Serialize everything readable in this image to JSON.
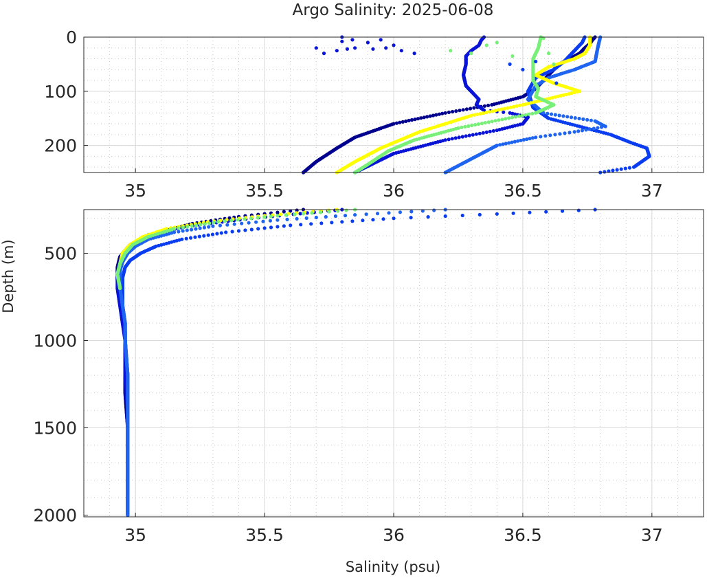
{
  "chart_data": [
    {
      "panel": "top",
      "type": "scatter",
      "title": "Argo Salinity: 2025-06-08",
      "xlabel": "",
      "ylabel": "",
      "xlim": [
        34.8,
        37.2
      ],
      "ylim": [
        250,
        0
      ],
      "y_reversed": true,
      "grid": true,
      "minor_grid": true,
      "xticks": [
        35,
        35.5,
        36,
        36.5,
        37
      ],
      "xtick_labels": [
        "35",
        "35.5",
        "36",
        "36.5",
        "37"
      ],
      "yticks": [
        0,
        100,
        200
      ],
      "ytick_labels": [
        "0",
        "100",
        "200"
      ],
      "series": [
        {
          "color": "#00008f",
          "profile": [
            [
              36.78,
              0
            ],
            [
              36.77,
              5
            ],
            [
              36.76,
              12
            ],
            [
              36.74,
              20
            ],
            [
              36.72,
              30
            ],
            [
              36.68,
              40
            ],
            [
              36.64,
              50
            ],
            [
              36.62,
              60
            ],
            [
              36.6,
              70
            ],
            [
              36.58,
              80
            ],
            [
              36.55,
              95
            ],
            [
              36.5,
              110
            ],
            [
              36.38,
              125
            ],
            [
              36.2,
              140
            ],
            [
              36.0,
              160
            ],
            [
              35.85,
              185
            ],
            [
              35.78,
              205
            ],
            [
              35.7,
              230
            ],
            [
              35.65,
              250
            ]
          ]
        },
        {
          "color": "#0a14d6",
          "profile": [
            [
              36.35,
              0
            ],
            [
              36.34,
              5
            ],
            [
              36.33,
              15
            ],
            [
              36.3,
              25
            ],
            [
              36.28,
              35
            ],
            [
              36.28,
              50
            ],
            [
              36.27,
              70
            ],
            [
              36.28,
              90
            ],
            [
              36.31,
              105
            ],
            [
              36.33,
              115
            ],
            [
              36.32,
              125
            ],
            [
              36.35,
              135
            ],
            [
              36.45,
              140
            ],
            [
              36.52,
              148
            ],
            [
              36.5,
              160
            ],
            [
              36.4,
              172
            ],
            [
              36.2,
              190
            ],
            [
              36.0,
              215
            ],
            [
              35.85,
              250
            ]
          ]
        },
        {
          "color": "#0a3cf0",
          "profile": [
            [
              36.74,
              0
            ],
            [
              36.73,
              10
            ],
            [
              36.7,
              25
            ],
            [
              36.66,
              45
            ],
            [
              36.62,
              60
            ],
            [
              36.55,
              75
            ],
            [
              36.52,
              100
            ],
            [
              36.54,
              130
            ],
            [
              36.6,
              150
            ],
            [
              36.72,
              165
            ],
            [
              36.84,
              180
            ],
            [
              36.92,
              195
            ],
            [
              36.98,
              205
            ],
            [
              36.99,
              220
            ],
            [
              36.93,
              240
            ],
            [
              36.8,
              250
            ]
          ]
        },
        {
          "color": "#1e64f0",
          "profile": [
            [
              36.8,
              0
            ],
            [
              36.79,
              20
            ],
            [
              36.78,
              45
            ],
            [
              36.7,
              60
            ],
            [
              36.6,
              75
            ],
            [
              36.55,
              90
            ],
            [
              36.52,
              115
            ],
            [
              36.58,
              140
            ],
            [
              36.78,
              155
            ],
            [
              36.82,
              165
            ],
            [
              36.7,
              175
            ],
            [
              36.55,
              185
            ],
            [
              36.4,
              200
            ],
            [
              36.3,
              225
            ],
            [
              36.2,
              250
            ]
          ]
        },
        {
          "color": "#ffff00",
          "profile": [
            [
              36.76,
              0
            ],
            [
              36.76,
              15
            ],
            [
              36.74,
              30
            ],
            [
              36.7,
              40
            ],
            [
              36.6,
              55
            ],
            [
              36.55,
              70
            ],
            [
              36.62,
              85
            ],
            [
              36.72,
              100
            ],
            [
              36.5,
              125
            ],
            [
              36.3,
              145
            ],
            [
              36.1,
              175
            ],
            [
              35.95,
              205
            ],
            [
              35.85,
              230
            ],
            [
              35.78,
              250
            ]
          ]
        },
        {
          "color": "#78f078",
          "profile": [
            [
              36.57,
              0
            ],
            [
              36.56,
              20
            ],
            [
              36.54,
              40
            ],
            [
              36.54,
              60
            ],
            [
              36.54,
              80
            ],
            [
              36.56,
              95
            ],
            [
              36.55,
              110
            ],
            [
              36.62,
              125
            ],
            [
              36.55,
              140
            ],
            [
              36.42,
              152
            ],
            [
              36.25,
              168
            ],
            [
              36.08,
              190
            ],
            [
              35.98,
              210
            ],
            [
              35.9,
              235
            ],
            [
              35.85,
              250
            ]
          ]
        }
      ],
      "near_surface_points": [
        {
          "color": "#0a14d6",
          "points": [
            [
              35.7,
              20
            ],
            [
              35.73,
              30
            ],
            [
              35.8,
              0
            ],
            [
              35.8,
              8
            ],
            [
              35.84,
              5
            ],
            [
              35.82,
              22
            ],
            [
              35.85,
              20
            ],
            [
              35.9,
              10
            ],
            [
              35.92,
              22
            ],
            [
              35.95,
              5
            ],
            [
              35.97,
              20
            ],
            [
              36.0,
              15
            ],
            [
              36.03,
              25
            ],
            [
              36.08,
              30
            ],
            [
              35.78,
              25
            ]
          ]
        },
        {
          "color": "#78f078",
          "points": [
            [
              36.22,
              25
            ],
            [
              36.3,
              30
            ],
            [
              36.36,
              15
            ],
            [
              36.4,
              10
            ],
            [
              36.46,
              35
            ],
            [
              36.58,
              2
            ],
            [
              36.6,
              30
            ],
            [
              36.62,
              50
            ]
          ]
        },
        {
          "color": "#0a3cf0",
          "points": [
            [
              36.45,
              50
            ],
            [
              36.5,
              60
            ],
            [
              36.55,
              45
            ],
            [
              36.63,
              85
            ]
          ]
        }
      ]
    },
    {
      "panel": "bottom",
      "type": "scatter",
      "title": "",
      "xlabel": "Salinity (psu)",
      "ylabel": "Depth (m)",
      "xlim": [
        34.8,
        37.2
      ],
      "ylim": [
        2010,
        250
      ],
      "y_reversed": true,
      "grid": true,
      "minor_grid": true,
      "xticks": [
        35,
        35.5,
        36,
        36.5,
        37
      ],
      "xtick_labels": [
        "35",
        "35.5",
        "36",
        "36.5",
        "37"
      ],
      "yticks": [
        500,
        1000,
        1500,
        2000
      ],
      "ytick_labels": [
        "500",
        "1000",
        "1500",
        "2000"
      ],
      "series": [
        {
          "color": "#00008f",
          "profile": [
            [
              35.65,
              250
            ],
            [
              35.4,
              290
            ],
            [
              35.22,
              330
            ],
            [
              35.12,
              370
            ],
            [
              35.03,
              420
            ],
            [
              34.97,
              470
            ],
            [
              34.94,
              520
            ],
            [
              34.93,
              580
            ],
            [
              34.93,
              650
            ],
            [
              34.94,
              750
            ],
            [
              34.95,
              850
            ],
            [
              34.96,
              950
            ],
            [
              34.96,
              1100
            ],
            [
              34.96,
              1300
            ],
            [
              34.97,
              1500
            ],
            [
              34.97,
              1700
            ],
            [
              34.97,
              1900
            ],
            [
              34.97,
              2000
            ]
          ]
        },
        {
          "color": "#0a14d6",
          "profile": [
            [
              35.8,
              250
            ],
            [
              35.45,
              300
            ],
            [
              35.2,
              345
            ],
            [
              35.05,
              395
            ],
            [
              34.98,
              450
            ],
            [
              34.95,
              500
            ],
            [
              34.94,
              560
            ],
            [
              34.93,
              620
            ],
            [
              34.93,
              700
            ],
            [
              34.94,
              800
            ],
            [
              34.95,
              900
            ],
            [
              34.96,
              1000
            ],
            [
              34.96,
              1200
            ],
            [
              34.97,
              1400
            ],
            [
              34.97,
              1600
            ],
            [
              34.97,
              1800
            ],
            [
              34.97,
              2000
            ]
          ]
        },
        {
          "color": "#0a3cf0",
          "profile": [
            [
              36.78,
              250
            ],
            [
              36.4,
              275
            ],
            [
              36.0,
              300
            ],
            [
              35.6,
              340
            ],
            [
              35.35,
              380
            ],
            [
              35.18,
              420
            ],
            [
              35.08,
              460
            ],
            [
              35.02,
              500
            ],
            [
              34.98,
              540
            ],
            [
              34.96,
              580
            ],
            [
              34.95,
              640
            ],
            [
              34.95,
              700
            ],
            [
              34.95,
              800
            ],
            [
              34.96,
              900
            ],
            [
              34.96,
              1000
            ],
            [
              34.97,
              1200
            ],
            [
              34.97,
              1400
            ],
            [
              34.97,
              1600
            ],
            [
              34.97,
              1800
            ],
            [
              34.97,
              2000
            ]
          ]
        },
        {
          "color": "#1e64f0",
          "profile": [
            [
              36.2,
              250
            ],
            [
              35.85,
              280
            ],
            [
              35.55,
              310
            ],
            [
              35.3,
              345
            ],
            [
              35.15,
              380
            ],
            [
              35.05,
              420
            ],
            [
              35.0,
              460
            ],
            [
              34.97,
              500
            ],
            [
              34.95,
              550
            ],
            [
              34.94,
              600
            ],
            [
              34.94,
              700
            ],
            [
              34.95,
              800
            ],
            [
              34.96,
              900
            ],
            [
              34.96,
              1000
            ],
            [
              34.97,
              1200
            ],
            [
              34.97,
              1400
            ],
            [
              34.97,
              1600
            ],
            [
              34.97,
              1800
            ],
            [
              34.97,
              2000
            ]
          ]
        },
        {
          "color": "#ffff00",
          "profile": [
            [
              35.78,
              250
            ],
            [
              35.5,
              285
            ],
            [
              35.28,
              320
            ],
            [
              35.12,
              360
            ],
            [
              35.03,
              405
            ],
            [
              34.98,
              450
            ],
            [
              34.95,
              500
            ],
            [
              34.94,
              560
            ],
            [
              34.93,
              620
            ],
            [
              34.94,
              700
            ]
          ]
        },
        {
          "color": "#78f078",
          "profile": [
            [
              35.85,
              250
            ],
            [
              35.55,
              285
            ],
            [
              35.32,
              320
            ],
            [
              35.15,
              360
            ],
            [
              35.05,
              405
            ],
            [
              34.99,
              450
            ],
            [
              34.96,
              500
            ],
            [
              34.94,
              560
            ],
            [
              34.93,
              620
            ],
            [
              34.94,
              700
            ]
          ]
        }
      ]
    }
  ]
}
